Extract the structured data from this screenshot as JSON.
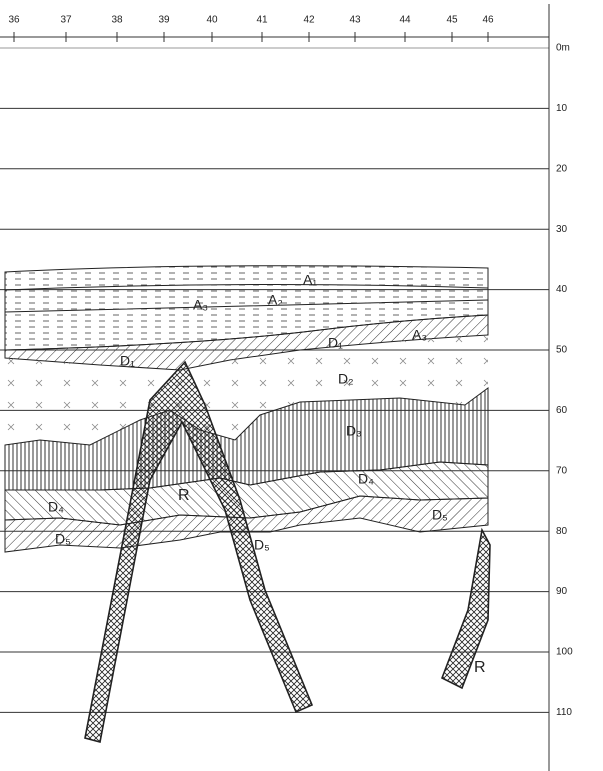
{
  "top_axis": {
    "labels": [
      "36",
      "37",
      "38",
      "39",
      "40",
      "41",
      "42",
      "43",
      "44",
      "45",
      "46"
    ]
  },
  "depth_axis": {
    "labels": [
      "0m",
      "10",
      "20",
      "30",
      "40",
      "50",
      "60",
      "70",
      "80",
      "90",
      "100",
      "110"
    ]
  },
  "layer_labels": [
    "A₁",
    "A₂",
    "A₃",
    "A₃",
    "D₁",
    "D₁",
    "D₂",
    "D₃",
    "D₄",
    "D₄",
    "D₅",
    "D₅",
    "D₅",
    "R",
    "R"
  ]
}
